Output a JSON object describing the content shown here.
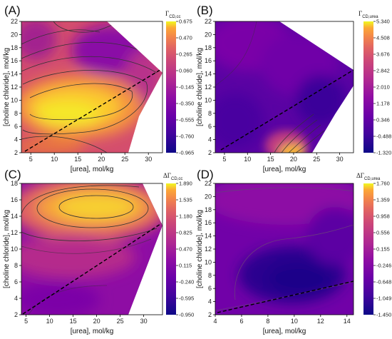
{
  "chart_data": [
    {
      "panel_label": "(A)",
      "type": "heatmap",
      "xlabel": "[urea], mol/kg",
      "ylabel": "[choline chloride], mol/kg",
      "xlim": [
        3,
        33
      ],
      "ylim": [
        2,
        22
      ],
      "xticks": [
        "5",
        "10",
        "15",
        "20",
        "25",
        "30"
      ],
      "yticks": [
        "2",
        "4",
        "6",
        "8",
        "10",
        "12",
        "14",
        "16",
        "18",
        "20",
        "22"
      ],
      "colorbar": {
        "title": "Γ",
        "subscript": "CD,cc",
        "ticks": [
          "0.675",
          "0.470",
          "0.265",
          "0.060",
          "-0.145",
          "-0.350",
          "-0.555",
          "-0.760",
          "-0.965"
        ]
      }
    },
    {
      "panel_label": "(B)",
      "type": "heatmap",
      "xlabel": "[urea], mol/kg",
      "ylabel": "[choline chloride], mol/kg",
      "xlim": [
        3,
        33
      ],
      "ylim": [
        2,
        22
      ],
      "xticks": [
        "5",
        "10",
        "15",
        "20",
        "25",
        "30"
      ],
      "yticks": [
        "2",
        "4",
        "6",
        "8",
        "10",
        "12",
        "14",
        "16",
        "18",
        "20",
        "22"
      ],
      "colorbar": {
        "title": "Γ",
        "subscript": "CD,urea",
        "ticks": [
          "5.340",
          "4.508",
          "3.676",
          "2.842",
          "2.010",
          "1.178",
          "0.346",
          "-0.488",
          "-1.320"
        ]
      }
    },
    {
      "panel_label": "(C)",
      "type": "heatmap",
      "xlabel": "[urea], mol/kg",
      "ylabel": "[choline chloride], mol/kg",
      "xlim": [
        4,
        34
      ],
      "ylim": [
        2,
        18
      ],
      "xticks": [
        "5",
        "10",
        "15",
        "20",
        "25",
        "30"
      ],
      "yticks": [
        "2",
        "4",
        "6",
        "8",
        "10",
        "12",
        "14",
        "16",
        "18"
      ],
      "colorbar": {
        "title": "ΔΓ",
        "subscript": "CD,cc",
        "ticks": [
          "1.890",
          "1.535",
          "1.180",
          "0.825",
          "0.470",
          "0.115",
          "-0.240",
          "-0.595",
          "-0.950"
        ]
      }
    },
    {
      "panel_label": "(D)",
      "type": "heatmap",
      "xlabel": "[urea], mol/kg",
      "ylabel": "[choline chloride], mol/kg",
      "xlim": [
        4,
        14.5
      ],
      "ylim": [
        2,
        22
      ],
      "xticks": [
        "4",
        "6",
        "8",
        "10",
        "12",
        "14"
      ],
      "yticks": [
        "2",
        "4",
        "6",
        "8",
        "10",
        "12",
        "14",
        "16",
        "18",
        "20",
        "22"
      ],
      "colorbar": {
        "title": "ΔΓ",
        "subscript": "CD,urea",
        "ticks": [
          "1.760",
          "1.359",
          "0.958",
          "0.556",
          "0.155",
          "-0.246",
          "-0.648",
          "-1.049",
          "-1.450"
        ]
      }
    }
  ]
}
